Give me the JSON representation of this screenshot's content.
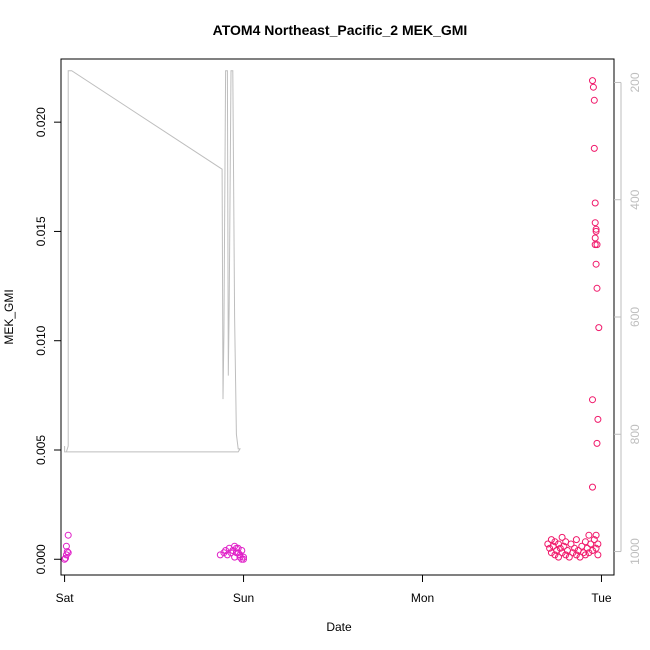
{
  "chart_data": {
    "type": "scatter",
    "title": "ATOM4 Northeast_Pacific_2 MEK_GMI",
    "xlabel": "Date",
    "ylabel": "MEK_GMI",
    "x_unit": "days since Saturday 00:00",
    "xlim": [
      -0.02,
      3.07
    ],
    "ylim": [
      -0.00072,
      0.02289
    ],
    "y2lim": [
      1040,
      160
    ],
    "x_ticks": [
      {
        "value": 0,
        "label": "Sat"
      },
      {
        "value": 1,
        "label": "Sun"
      },
      {
        "value": 2,
        "label": "Mon"
      },
      {
        "value": 3,
        "label": "Tue"
      }
    ],
    "y_ticks": [
      {
        "value": 0.0,
        "label": "0.000"
      },
      {
        "value": 0.005,
        "label": "0.005"
      },
      {
        "value": 0.01,
        "label": "0.010"
      },
      {
        "value": 0.015,
        "label": "0.015"
      },
      {
        "value": 0.02,
        "label": "0.020"
      }
    ],
    "y2_ticks": [
      {
        "value": 200,
        "label": "200"
      },
      {
        "value": 400,
        "label": "400"
      },
      {
        "value": 600,
        "label": "600"
      },
      {
        "value": 800,
        "label": "800"
      },
      {
        "value": 1000,
        "label": "1000"
      }
    ],
    "colors": {
      "points_early": "#e020c8",
      "points_late": "#f0186a",
      "pressure_line": "#bebebe",
      "axis": "#000000",
      "right_axis": "#bebebe"
    },
    "series": [
      {
        "role": "points",
        "color": "#e020c8",
        "points": [
          [
            0.0,
            0.0
          ],
          [
            0.005,
            5e-05
          ],
          [
            0.01,
            0.0002
          ],
          [
            0.015,
            0.00035
          ],
          [
            0.01,
            0.0006
          ],
          [
            0.02,
            0.0003
          ],
          [
            0.02,
            0.0011
          ],
          [
            0.87,
            0.0002
          ],
          [
            0.89,
            0.0003
          ],
          [
            0.9,
            0.0004
          ],
          [
            0.91,
            0.0002
          ],
          [
            0.92,
            0.0005
          ],
          [
            0.93,
            0.0003
          ],
          [
            0.94,
            0.0004
          ],
          [
            0.95,
            0.0006
          ],
          [
            0.96,
            0.0003
          ],
          [
            0.97,
            0.0005
          ],
          [
            0.98,
            0.0002
          ],
          [
            0.99,
            0.0004
          ],
          [
            1.0,
            0.0001
          ],
          [
            0.95,
            0.0001
          ],
          [
            0.96,
            0.0005
          ],
          [
            0.97,
            0.0003
          ],
          [
            0.98,
            0.0001
          ],
          [
            0.99,
            0.0
          ],
          [
            1.0,
            0.0
          ]
        ]
      },
      {
        "role": "points",
        "color": "#f0186a",
        "points": [
          [
            2.7,
            0.0007
          ],
          [
            2.71,
            0.0005
          ],
          [
            2.72,
            0.0009
          ],
          [
            2.72,
            0.0003
          ],
          [
            2.73,
            0.0006
          ],
          [
            2.74,
            0.0002
          ],
          [
            2.74,
            0.0008
          ],
          [
            2.75,
            0.0004
          ],
          [
            2.76,
            0.0001
          ],
          [
            2.76,
            0.0007
          ],
          [
            2.77,
            0.0005
          ],
          [
            2.78,
            0.0003
          ],
          [
            2.78,
            0.001
          ],
          [
            2.79,
            0.0006
          ],
          [
            2.8,
            0.0002
          ],
          [
            2.8,
            0.0008
          ],
          [
            2.81,
            0.0004
          ],
          [
            2.82,
            0.0001
          ],
          [
            2.83,
            0.0007
          ],
          [
            2.84,
            0.0003
          ],
          [
            2.85,
            0.0005
          ],
          [
            2.86,
            0.0002
          ],
          [
            2.86,
            0.0009
          ],
          [
            2.87,
            0.0004
          ],
          [
            2.88,
            0.0001
          ],
          [
            2.89,
            0.0006
          ],
          [
            2.9,
            0.0003
          ],
          [
            2.91,
            0.0008
          ],
          [
            2.91,
            0.0002
          ],
          [
            2.92,
            0.0005
          ],
          [
            2.93,
            0.0011
          ],
          [
            2.93,
            0.0003
          ],
          [
            2.94,
            0.0007
          ],
          [
            2.95,
            0.0004
          ],
          [
            2.96,
            0.0009
          ],
          [
            2.97,
            0.0005
          ],
          [
            2.97,
            0.0011
          ],
          [
            2.98,
            0.0007
          ],
          [
            2.98,
            0.0002
          ],
          [
            2.95,
            0.0219
          ],
          [
            2.955,
            0.0216
          ],
          [
            2.96,
            0.021
          ],
          [
            2.96,
            0.0188
          ],
          [
            2.965,
            0.0163
          ],
          [
            2.965,
            0.0154
          ],
          [
            2.97,
            0.0151
          ],
          [
            2.97,
            0.015
          ],
          [
            2.965,
            0.0147
          ],
          [
            2.965,
            0.0144
          ],
          [
            2.975,
            0.0144
          ],
          [
            2.97,
            0.0135
          ],
          [
            2.975,
            0.0124
          ],
          [
            2.985,
            0.0106
          ],
          [
            2.95,
            0.0073
          ],
          [
            2.98,
            0.0064
          ],
          [
            2.975,
            0.0053
          ],
          [
            2.95,
            0.0033
          ]
        ]
      },
      {
        "role": "pressure",
        "axis": "right",
        "color": "#bebebe",
        "points": [
          [
            0.0,
            820
          ],
          [
            0.0,
            830
          ],
          [
            0.01,
            830
          ],
          [
            0.02,
            820
          ],
          [
            0.02,
            180
          ],
          [
            0.04,
            180
          ],
          [
            0.88,
            348
          ],
          [
            0.885,
            740
          ],
          [
            0.89,
            630
          ],
          [
            0.9,
            180
          ],
          [
            0.91,
            180
          ],
          [
            0.915,
            700
          ],
          [
            0.92,
            580
          ],
          [
            0.93,
            180
          ],
          [
            0.94,
            180
          ],
          [
            0.95,
            600
          ],
          [
            0.96,
            800
          ],
          [
            0.97,
            825
          ],
          [
            0.98,
            825
          ],
          [
            0.97,
            830
          ],
          [
            0.0,
            830
          ]
        ]
      }
    ]
  }
}
